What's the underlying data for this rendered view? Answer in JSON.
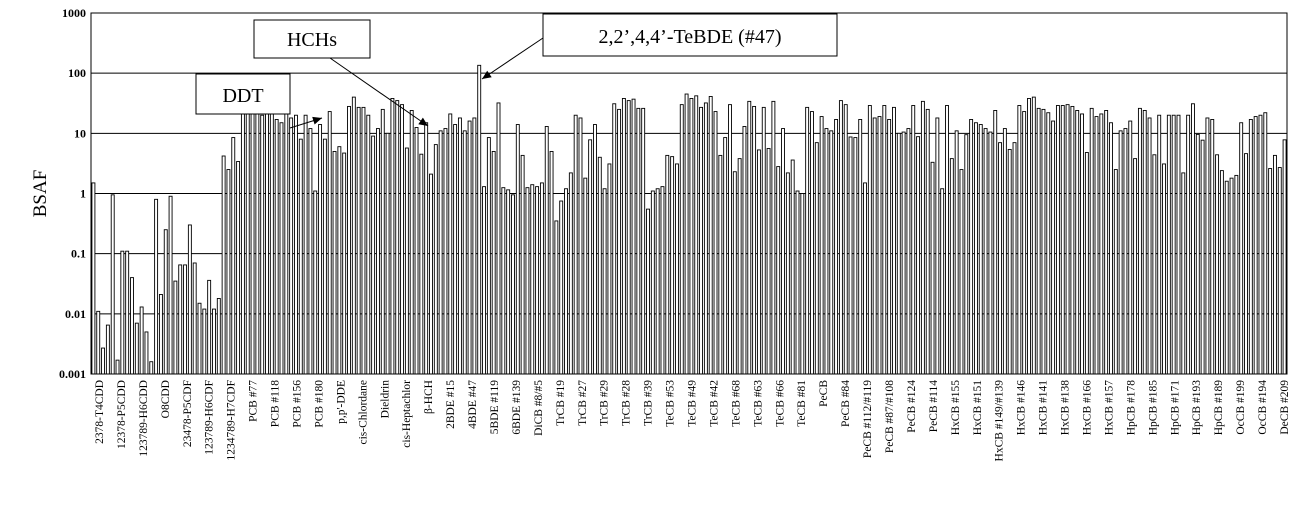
{
  "chart_data": {
    "type": "bar",
    "title": "",
    "xlabel": "",
    "ylabel": "BSAF",
    "yscale": "log",
    "ylim": [
      0.001,
      1000
    ],
    "y_ticks": [
      "0.001",
      "0.01",
      "0.1",
      "1",
      "10",
      "100",
      "1000"
    ],
    "grid": "horizontal major gridlines",
    "legend": "none",
    "colors": {
      "bar_fill": "#ffffff",
      "bar_stroke": "#000000",
      "grid": "#000000"
    },
    "x_tick_labels": [
      "2378-T4CDD",
      "12378-P5CDD",
      "123789-H6CDD",
      "O8CDD",
      "23478-P5CDF",
      "123789-H6CDF",
      "1234789-H7CDF",
      "PCB #77",
      "PCB #118",
      "PCB #156",
      "PCB #180",
      "p,p'-DDE",
      "cis-Chlordane",
      "Dieldrin",
      "cis-Heptachlor",
      "β-HCH",
      "2BDE #15",
      "4BDE #47",
      "5BDE #119",
      "6BDE #139",
      "DiCB #8/#5",
      "TrCB #19",
      "TrCB #27",
      "TrCB #29",
      "TrCB #28",
      "TrCB #39",
      "TeCB #53",
      "TeCB #49",
      "TeCB #42",
      "TeCB #68",
      "TeCB #63",
      "TeCB #66",
      "TeCB #81",
      "PeCB",
      "PeCB #84",
      "PeCB #112/#119",
      "PeCB #87/#108",
      "PeCB #124",
      "PeCB #114",
      "HxCB #155",
      "HxCB #151",
      "HxCB #149/#139",
      "HxCB #146",
      "HxCB #141",
      "HxCB #138",
      "HxCB #166",
      "HxCB #157",
      "HpCB #178",
      "HpCB #185",
      "HpCB #171",
      "HpCB #193",
      "HpCB #189",
      "OcCB #199",
      "OcCB #194",
      "DeCB #209"
    ],
    "values": [
      1.5,
      0.011,
      0.0027,
      0.0065,
      0.95,
      0.0017,
      0.11,
      0.11,
      0.04,
      0.007,
      0.013,
      0.005,
      0.0016,
      0.8,
      0.021,
      0.25,
      0.9,
      0.035,
      0.065,
      0.065,
      0.3,
      0.07,
      0.015,
      0.012,
      0.036,
      0.012,
      0.018,
      4.2,
      2.5,
      8.5,
      3.4,
      30,
      26,
      27,
      28,
      20,
      25,
      22,
      17,
      15,
      24,
      18,
      20,
      8,
      20,
      12,
      1.1,
      14,
      8,
      23,
      5,
      6,
      4.7,
      28,
      40,
      27,
      27,
      20,
      9,
      12,
      25,
      10,
      38,
      35,
      30,
      5.7,
      24,
      12.5,
      4.5,
      15,
      2.1,
      6.5,
      11,
      12,
      21,
      14,
      18,
      11,
      16,
      18,
      135,
      1.3,
      8.5,
      5,
      32,
      1.25,
      1.15,
      0.95,
      14,
      4.3,
      1.25,
      1.4,
      1.3,
      1.5,
      13,
      5,
      0.35,
      0.75,
      1.2,
      2.2,
      20,
      18,
      1.8,
      7.8,
      14,
      4,
      1.2,
      3.1,
      31,
      25,
      38,
      35,
      37,
      26,
      26,
      0.55,
      1.1,
      1.2,
      1.3,
      4.3,
      4.1,
      3.1,
      30,
      45,
      38,
      42,
      27,
      32,
      41,
      23,
      4.3,
      8.5,
      30,
      2.3,
      3.8,
      13,
      34,
      28,
      5.3,
      27,
      5.6,
      34,
      2.8,
      12,
      2.2,
      3.6,
      1.1,
      1,
      27,
      23,
      7,
      19,
      12,
      11,
      17,
      35,
      30,
      8.7,
      8.5,
      17,
      1.5,
      29,
      18,
      19,
      29,
      17,
      27,
      10,
      10.5,
      12,
      29,
      8.8,
      34,
      25,
      3.3,
      18,
      1.2,
      29,
      3.8,
      11,
      2.5,
      9.5,
      17,
      15,
      14,
      12,
      10.5,
      24,
      7,
      12,
      5.4,
      7,
      29,
      23,
      38,
      40,
      26,
      25,
      22,
      16,
      29,
      29,
      30,
      28,
      24,
      21,
      4.8,
      26,
      19,
      21,
      24,
      15,
      2.5,
      11,
      12,
      16,
      3.8,
      26,
      24,
      18,
      4.4,
      20,
      3.1,
      20,
      20,
      20,
      2.2,
      20,
      31,
      9.6,
      7.7,
      18,
      17,
      4.4,
      2.4,
      1.6,
      1.8,
      2,
      15,
      4.6,
      17,
      19,
      20,
      22,
      2.6,
      4.3,
      2.7,
      7.8
    ],
    "annotations": [
      {
        "text": "DDT"
      },
      {
        "text": "HCHs"
      },
      {
        "text": "2,2’,4,4’-TeBDE (#47)"
      }
    ]
  }
}
